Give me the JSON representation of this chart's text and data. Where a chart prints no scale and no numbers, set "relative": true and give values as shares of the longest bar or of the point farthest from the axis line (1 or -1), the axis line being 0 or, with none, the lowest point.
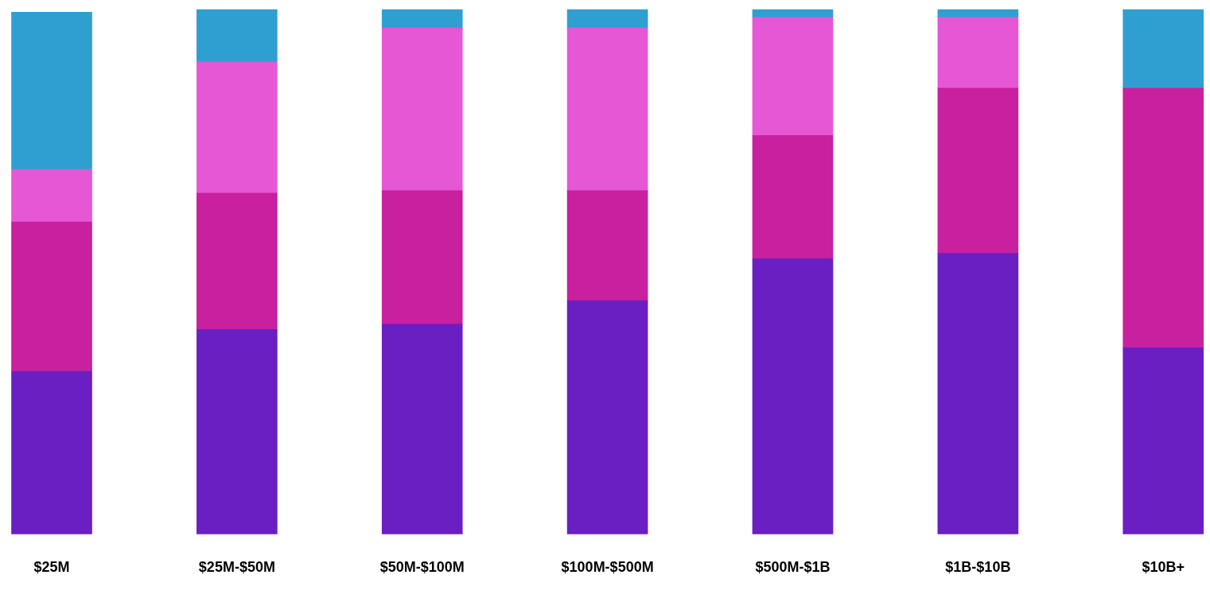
{
  "chart_data": {
    "type": "bar",
    "stacked": true,
    "relative": true,
    "legend": false,
    "grid": false,
    "categories": [
      "$25M",
      "$25M-$50M",
      "$50M-$100M",
      "$100M-$500M",
      "$500M-$1B",
      "$1B-$10B",
      "$10B+"
    ],
    "series": [
      {
        "color": "#6a1fc2",
        "values": [
          0.31,
          0.39,
          0.4,
          0.445,
          0.525,
          0.535,
          0.355
        ]
      },
      {
        "color": "#c8209e",
        "values": [
          0.285,
          0.26,
          0.255,
          0.21,
          0.235,
          0.315,
          0.495
        ]
      },
      {
        "color": "#e657d6",
        "values": [
          0.1,
          0.25,
          0.31,
          0.31,
          0.225,
          0.135,
          0
        ]
      },
      {
        "color": "#2f9fd2",
        "values": [
          0.3,
          0.1,
          0.035,
          0.035,
          0.015,
          0.015,
          0.15
        ]
      }
    ]
  }
}
